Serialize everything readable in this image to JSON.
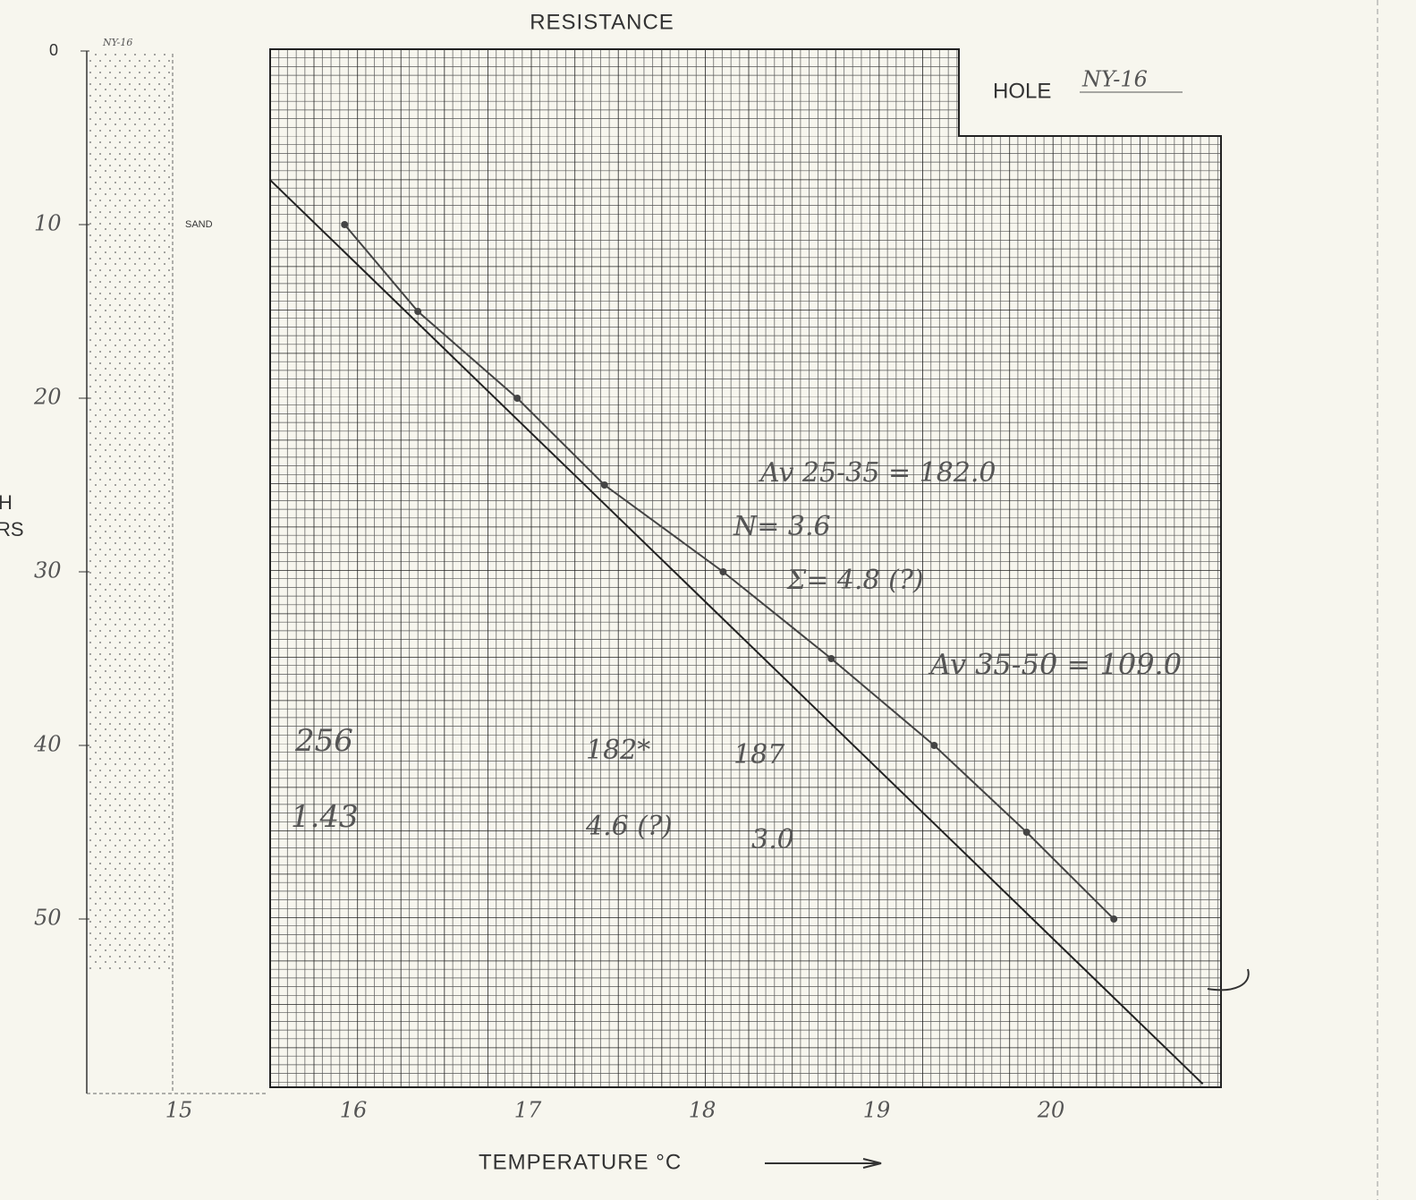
{
  "chart_data": {
    "type": "line",
    "title": "RESISTANCE",
    "hole_label": "HOLE",
    "hole": "NY-16",
    "column_label": "NY-16",
    "lithology": {
      "name": "SAND",
      "top": 0,
      "bottom": 53
    },
    "x_label": "TEMPERATURE °C",
    "y_label": [
      "H",
      "RS"
    ],
    "xlim": [
      15,
      21
    ],
    "ylim": [
      0,
      60
    ],
    "xticks": [
      15,
      16,
      17,
      18,
      19,
      20
    ],
    "yticks": [
      0,
      10,
      20,
      30,
      40,
      50
    ],
    "series": [
      {
        "color": "#444",
        "markers": true,
        "x": [
          15.95,
          16.37,
          16.94,
          17.44,
          18.12,
          18.74,
          19.33,
          19.86,
          20.36
        ],
        "values": [
          10,
          15,
          20,
          25,
          30,
          35,
          40,
          45,
          50
        ]
      },
      {
        "color": "#222",
        "markers": false,
        "x": [
          15.52,
          20.87
        ],
        "values": [
          7.4,
          59.5
        ]
      }
    ],
    "annotations": [
      "Av 25-35 = 182.0",
      "N= 3.6",
      "Σ= 4.8 (?)",
      "Av 35-50 = 109.0",
      "256",
      "1.43",
      "182*",
      "187",
      "4.6 (?)",
      "3.0"
    ]
  }
}
